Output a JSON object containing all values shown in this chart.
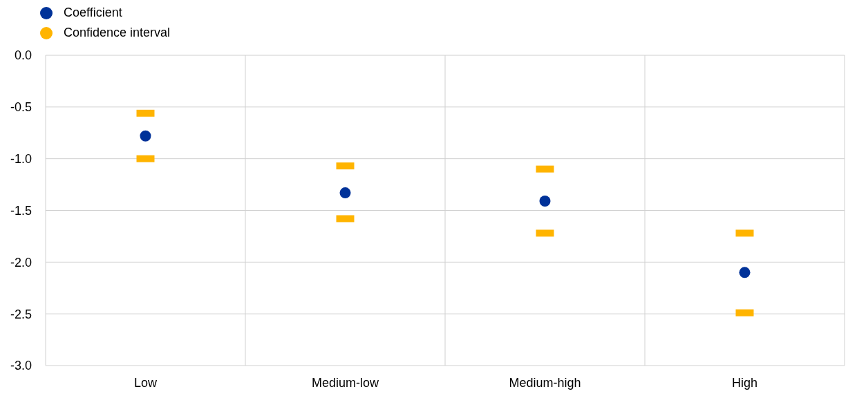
{
  "chart_data": {
    "type": "scatter",
    "categories": [
      "Low",
      "Medium-low",
      "Medium-high",
      "High"
    ],
    "series": [
      {
        "name": "Coefficient",
        "color": "#003299",
        "marker": "circle",
        "values": [
          -0.78,
          -1.33,
          -1.41,
          -2.1
        ]
      },
      {
        "name": "Confidence interval",
        "color": "#ffb400",
        "x": [
          "Low",
          "Low",
          "Medium-low",
          "Medium-low",
          "Medium-high",
          "Medium-high",
          "High",
          "High"
        ],
        "values": [
          -0.56,
          -1.0,
          -1.07,
          -1.58,
          -1.1,
          -1.72,
          -1.72,
          -2.49
        ]
      }
    ],
    "ylim": [
      -3,
      0
    ],
    "yticks": [
      {
        "value": 0,
        "label": "0.0"
      },
      -0.5,
      {
        "value": -1,
        "label": "-1.0"
      },
      -1.5,
      {
        "value": -2,
        "label": "-2.0"
      },
      -2.5,
      {
        "value": -3,
        "label": "-3.0"
      }
    ],
    "grid": true,
    "legend": "top left"
  }
}
